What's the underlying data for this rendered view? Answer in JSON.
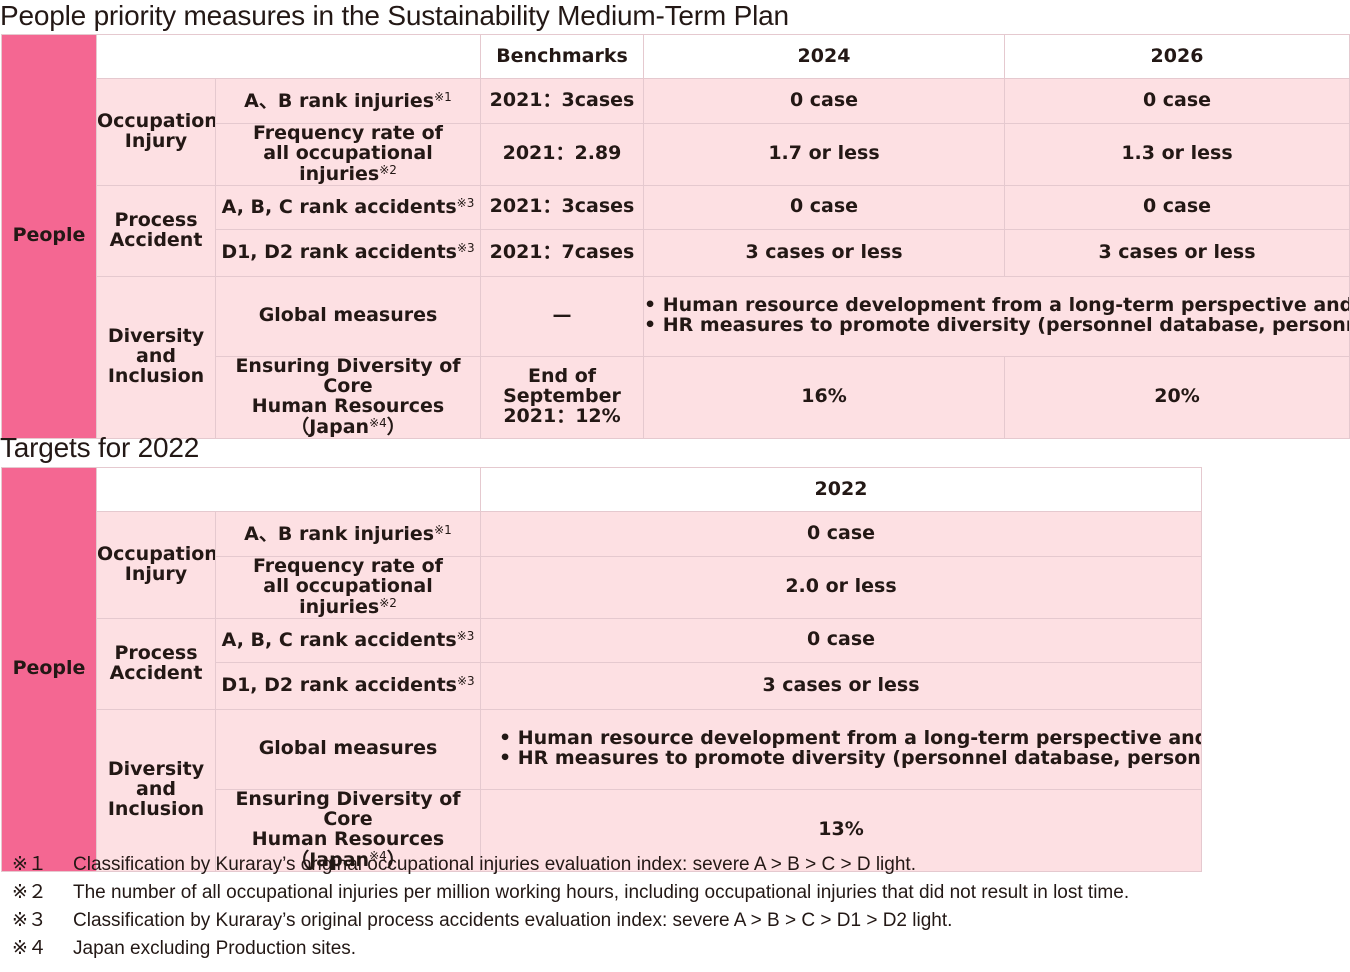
{
  "section1": {
    "title": "People priority measures in the Sustainability Medium-Term Plan",
    "headers": [
      "Benchmarks",
      "2024",
      "2026"
    ],
    "people_label": "People",
    "groups": {
      "occupational": "Occupational\nInjury",
      "process": "Process\nAccident",
      "diversity": "Diversity\nand\nInclusion"
    },
    "rows": {
      "ab_injuries": {
        "item": "A、B rank injuries",
        "mark": "※1",
        "bench": "2021：3cases",
        "y2024": "0 case",
        "y2026": "0  case"
      },
      "freq_rate": {
        "item_line1": "Frequency rate of",
        "item_line2": "all occupational injuries",
        "mark": "※2",
        "bench": "2021：2.89",
        "y2024": "1.7 or less",
        "y2026": "1.3 or less"
      },
      "abc_accidents": {
        "item": "A, B, C rank accidents",
        "mark": "※3",
        "bench": "2021：3cases",
        "y2024": "0  case",
        "y2026": "0  case"
      },
      "d_accidents": {
        "item": "D1, D2 rank accidents",
        "mark": "※3",
        "bench": "2021：7cases",
        "y2024": "3 cases or less",
        "y2026": "3 cases or less"
      },
      "global": {
        "item": "Global measures",
        "bench": "—",
        "bullet1": "• Human resource development from a long-term perspective and promotion of global mobility",
        "bullet2": "• HR measures to promote diversity  (personnel database, personnel recruitment, etc.)"
      },
      "core_hr": {
        "item_line1": "Ensuring Diversity of Core",
        "item_line2": "Human Resources（Japan",
        "mark": "※4",
        "close": "）",
        "bench_line1": "End of September",
        "bench_line2": "2021：12%",
        "y2024": "16%",
        "y2026": "20%"
      }
    }
  },
  "section2": {
    "title": "Targets for 2022",
    "header": "2022",
    "people_label": "People",
    "groups": {
      "occupational": "Occupational\nInjury",
      "process": "Process\nAccident",
      "diversity": "Diversity\nand\nInclusion"
    },
    "rows": {
      "ab_injuries": {
        "item": "A、B rank injuries",
        "mark": "※1",
        "value": "0 case"
      },
      "freq_rate": {
        "item_line1": "Frequency rate of",
        "item_line2": "all occupational injuries",
        "mark": "※2",
        "value": "2.0 or less"
      },
      "abc_accidents": {
        "item": "A, B, C rank accidents",
        "mark": "※3",
        "value": "0  case"
      },
      "d_accidents": {
        "item": "D1, D2 rank accidents",
        "mark": "※3",
        "value": "3 cases or less"
      },
      "global": {
        "item": "Global measures",
        "bullet1": "• Human resource development from a long-term perspective and promotion of global mobility",
        "bullet2": "• HR measures to promote diversity  (personnel database, personnel recruitment, etc.)"
      },
      "core_hr": {
        "item_line1": "Ensuring Diversity of Core",
        "item_line2": "Human Resources（Japan",
        "mark": "※4",
        "close": "）",
        "value": "13%"
      }
    }
  },
  "footnotes": [
    {
      "mark": "※１",
      "text": "Classification by Kuraray’s original occupational injuries evaluation index: severe A > B > C > D light."
    },
    {
      "mark": "※２",
      "text": "The number of all occupational injuries per million working hours, including occupational injuries that did not result in lost time."
    },
    {
      "mark": "※３",
      "text": "Classification by Kuraray’s original process accidents evaluation index: severe A > B > C > D1 > D2 light."
    },
    {
      "mark": "※４",
      "text": "Japan excluding Production sites."
    }
  ]
}
